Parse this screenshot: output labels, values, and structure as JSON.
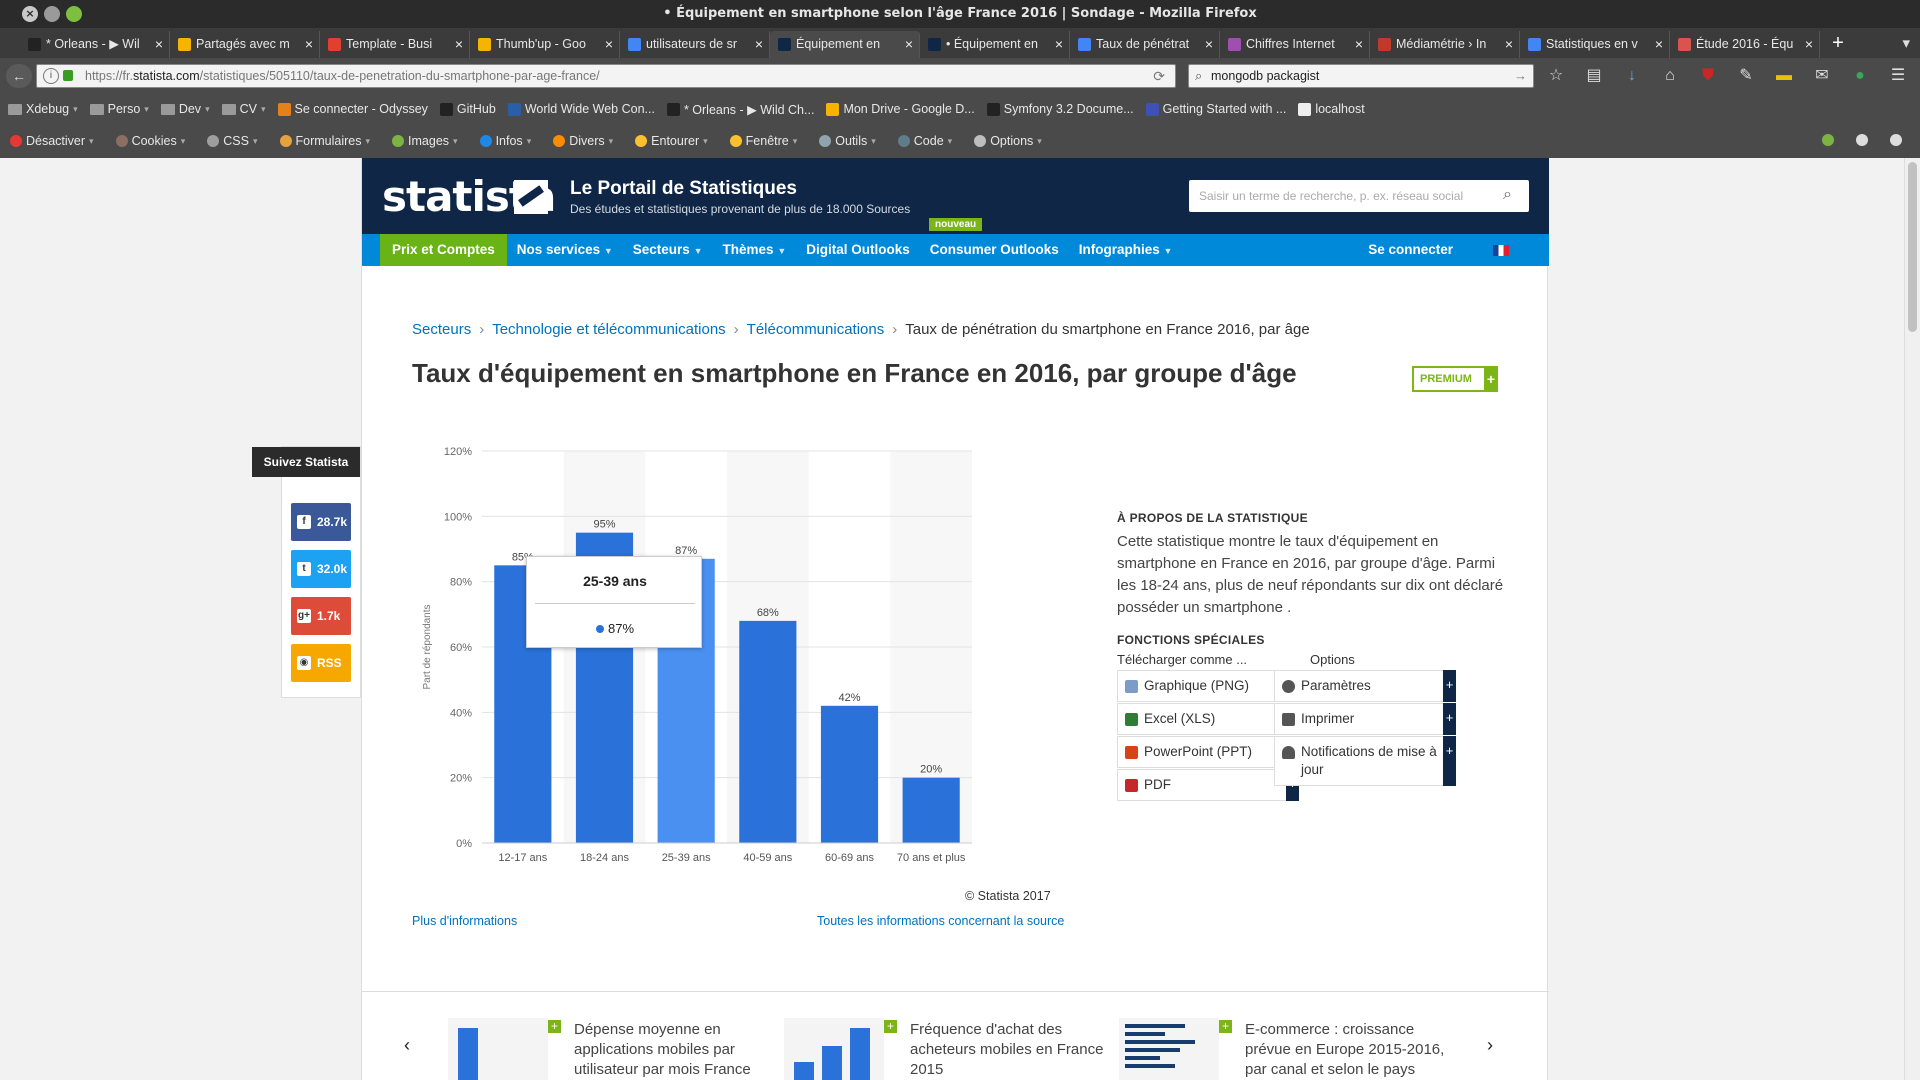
{
  "window": {
    "title": "• Équipement en smartphone selon l'âge France 2016 | Sondage - Mozilla Firefox"
  },
  "tabs": [
    {
      "label": "* Orleans - ▶ Wil",
      "color": "#222"
    },
    {
      "label": "Partagés avec m",
      "color": "#f4b400"
    },
    {
      "label": "Template - Busi",
      "color": "#e0402f"
    },
    {
      "label": "Thumb'up - Goo",
      "color": "#f4b400"
    },
    {
      "label": "utilisateurs de sr",
      "color": "#4285f4"
    },
    {
      "label": "Équipement en",
      "color": "#0f2646",
      "active": true
    },
    {
      "label": "• Équipement en",
      "color": "#0f2646"
    },
    {
      "label": "Taux de pénétrat",
      "color": "#4285f4"
    },
    {
      "label": "Chiffres Internet",
      "color": "#a04fb0"
    },
    {
      "label": "Médiamétrie › In",
      "color": "#c0392b"
    },
    {
      "label": "Statistiques en v",
      "color": "#4285f4"
    },
    {
      "label": "Étude 2016 - Équ",
      "color": "#d9534f"
    }
  ],
  "urlbar": {
    "prefix": "https://fr.",
    "host": "statista.com",
    "path": "/statistiques/505110/taux-de-penetration-du-smartphone-par-age-france/"
  },
  "searchbar": {
    "value": "mongodb packagist"
  },
  "bookmarks": [
    {
      "label": "Xdebug",
      "folder": true
    },
    {
      "label": "Perso",
      "folder": true
    },
    {
      "label": "Dev",
      "folder": true
    },
    {
      "label": "CV",
      "folder": true
    },
    {
      "label": "Se connecter - Odyssey",
      "color": "#e6801a"
    },
    {
      "label": "GitHub",
      "color": "#222"
    },
    {
      "label": "World Wide Web Con...",
      "color": "#2a5fa5"
    },
    {
      "label": "* Orleans - ▶ Wild Ch...",
      "color": "#222"
    },
    {
      "label": "Mon Drive - Google D...",
      "color": "#f4b400"
    },
    {
      "label": "Symfony 3.2 Docume...",
      "color": "#222"
    },
    {
      "label": "Getting Started with ...",
      "color": "#3f51b5"
    },
    {
      "label": "localhost",
      "color": "#eee"
    }
  ],
  "devtools": [
    {
      "label": "Désactiver",
      "color": "#e53935"
    },
    {
      "label": "Cookies",
      "color": "#8d6e63"
    },
    {
      "label": "CSS",
      "color": "#9e9e9e"
    },
    {
      "label": "Formulaires",
      "color": "#e6a23c"
    },
    {
      "label": "Images",
      "color": "#7cb342"
    },
    {
      "label": "Infos",
      "color": "#1e88e5"
    },
    {
      "label": "Divers",
      "color": "#fb8c00"
    },
    {
      "label": "Entourer",
      "color": "#fbc02d"
    },
    {
      "label": "Fenêtre",
      "color": "#fbc02d"
    },
    {
      "label": "Outils",
      "color": "#90a4ae"
    },
    {
      "label": "Code",
      "color": "#607d8b"
    },
    {
      "label": "Options",
      "color": "#bdbdbd"
    }
  ],
  "site": {
    "logo": "statista",
    "portal_title": "Le Portail de Statistiques",
    "portal_sub": "Des études et statistiques provenant de plus de 18.000 Sources",
    "new_badge": "nouveau",
    "search_placeholder": "Saisir un terme de recherche, p. ex. réseau social",
    "menu": [
      {
        "label": "Prix et Comptes",
        "green": true
      },
      {
        "label": "Nos services",
        "caret": true
      },
      {
        "label": "Secteurs",
        "caret": true
      },
      {
        "label": "Thèmes",
        "caret": true
      },
      {
        "label": "Digital Outlooks"
      },
      {
        "label": "Consumer Outlooks"
      },
      {
        "label": "Infographies",
        "caret": true
      }
    ],
    "login": "Se connecter"
  },
  "breadcrumb": {
    "links": [
      "Secteurs",
      "Technologie et télécommunications",
      "Télécommunications"
    ],
    "current": "Taux de pénétration du smartphone en France 2016, par âge"
  },
  "page_title": "Taux d'équipement en smartphone en France en 2016, par groupe d'âge",
  "premium_label": "PREMIUM",
  "follow": {
    "title": "Suivez Statista",
    "facebook": "28.7k",
    "twitter": "32.0k",
    "gplus": "1.7k",
    "rss": "RSS"
  },
  "chart_data": {
    "type": "bar",
    "categories": [
      "12-17 ans",
      "18-24 ans",
      "25-39 ans",
      "40-59 ans",
      "60-69 ans",
      "70 ans et plus"
    ],
    "values": [
      85,
      95,
      87,
      68,
      42,
      20
    ],
    "value_labels": [
      "85%",
      "95%",
      "87%",
      "68%",
      "42%",
      "20%"
    ],
    "ylabel": "Part de répondants",
    "ylim": [
      0,
      120
    ],
    "yticks": [
      "0%",
      "20%",
      "40%",
      "60%",
      "80%",
      "100%",
      "120%"
    ],
    "bar_color": "#2a72d9",
    "highlight_color": "#4a90f0",
    "highlight_index": 2,
    "tooltip": {
      "title": "25-39 ans",
      "value": "87%"
    }
  },
  "copyright": "© Statista 2017",
  "more_info": "Plus d'informations",
  "source_info": "Toutes les informations concernant la source",
  "about": {
    "title": "À PROPOS DE LA STATISTIQUE",
    "text": "Cette statistique montre le taux d'équipement en smartphone en France en 2016, par groupe d'âge. Parmi les 18-24 ans, plus de neuf répondants sur dix ont déclaré posséder un smartphone ."
  },
  "functions": {
    "title": "FONCTIONS SPÉCIALES",
    "download_label": "Télécharger comme ...",
    "options_label": "Options",
    "png": "Graphique (PNG)",
    "xls": "Excel (XLS)",
    "ppt": "PowerPoint (PPT)",
    "pdf": "PDF",
    "settings": "Paramètres",
    "print": "Imprimer",
    "notify": "Notifications de mise à jour"
  },
  "related": [
    {
      "text": "Dépense moyenne en applications mobiles par utilisateur par mois France"
    },
    {
      "text": "Fréquence d'achat des acheteurs mobiles en France 2015"
    },
    {
      "text": "E-commerce : croissance prévue en Europe 2015-2016, par canal et selon le pays"
    }
  ]
}
